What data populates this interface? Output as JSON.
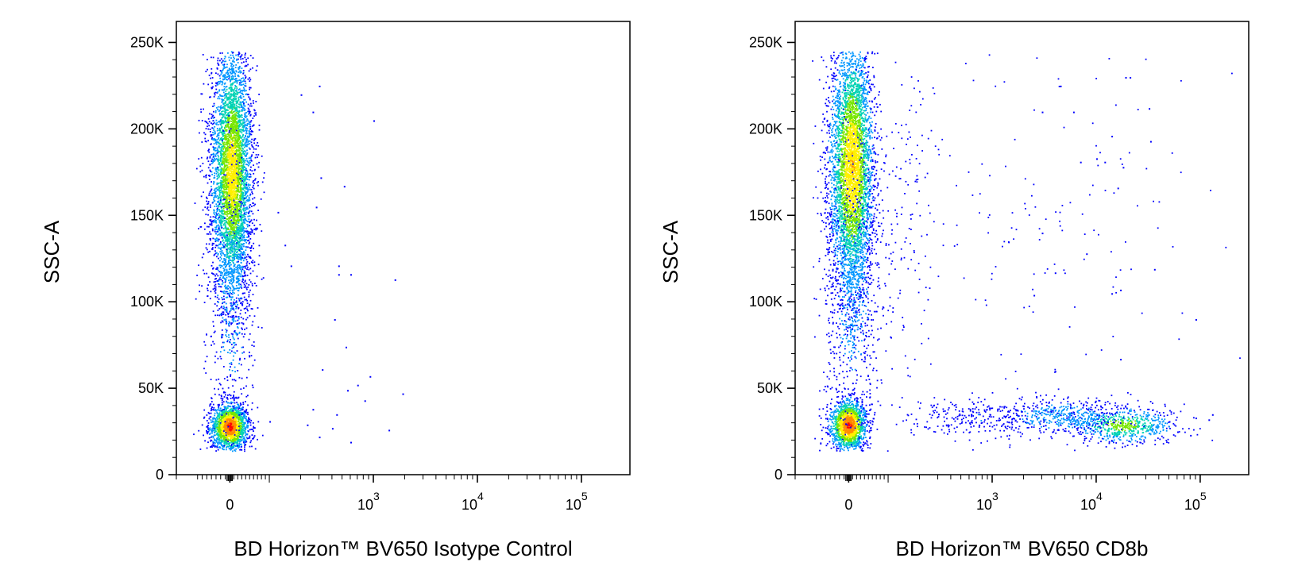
{
  "colors": {
    "density_scale": [
      "#0000ff",
      "#0096ff",
      "#00d2b4",
      "#78e600",
      "#fff000",
      "#ff8c00",
      "#ff0000"
    ],
    "axis": "#000000",
    "background": "#ffffff"
  },
  "chart_data": [
    {
      "type": "scatter",
      "subtype": "flow-cytometry-density-dot-plot",
      "title": "",
      "xlabel": "BD Horizon™ BV650 Isotype Control",
      "ylabel": "SSC-A",
      "x_scale": "biexponential",
      "xlim": [
        -120,
        150000
      ],
      "ylim": [
        0,
        262144
      ],
      "x_ticks": [
        {
          "value": 0,
          "base": "0",
          "exp": ""
        },
        {
          "value": 1000,
          "base": "10",
          "exp": "3"
        },
        {
          "value": 10000,
          "base": "10",
          "exp": "4"
        },
        {
          "value": 100000,
          "base": "10",
          "exp": "5"
        }
      ],
      "y_ticks": [
        {
          "value": 0,
          "label": "0"
        },
        {
          "value": 50000,
          "label": "50K"
        },
        {
          "value": 100000,
          "label": "100K"
        },
        {
          "value": 150000,
          "label": "150K"
        },
        {
          "value": 200000,
          "label": "200K"
        },
        {
          "value": 250000,
          "label": "250K"
        }
      ],
      "populations": [
        {
          "name": "",
          "x_center": 0,
          "x_spread": 22,
          "y_center": 28000,
          "y_spread": 7000,
          "count": 1700,
          "max_density": 1.0
        },
        {
          "name": "",
          "x_center": 5,
          "x_spread": 24,
          "y_center": 175000,
          "y_spread": 38000,
          "y_range": [
            70000,
            245000
          ],
          "count": 4600,
          "max_density": 0.72
        },
        {
          "name": "",
          "x_center": 5,
          "x_spread": 30,
          "y_center": 100000,
          "y_spread": 45000,
          "y_range": [
            15000,
            245000
          ],
          "count": 500,
          "max_density": 0.2
        }
      ],
      "sparse_events": [
        {
          "x": 200,
          "y": 220000
        },
        {
          "x": 300,
          "y": 225000
        },
        {
          "x": 260,
          "y": 210000
        },
        {
          "x": 1000,
          "y": 205000
        },
        {
          "x": 310,
          "y": 172000
        },
        {
          "x": 520,
          "y": 167000
        },
        {
          "x": 280,
          "y": 155000
        },
        {
          "x": 120,
          "y": 152000
        },
        {
          "x": 140,
          "y": 133000
        },
        {
          "x": 160,
          "y": 121000
        },
        {
          "x": 460,
          "y": 121000
        },
        {
          "x": 460,
          "y": 116000
        },
        {
          "x": 600,
          "y": 116000
        },
        {
          "x": 1600,
          "y": 113000
        },
        {
          "x": 420,
          "y": 90000
        },
        {
          "x": 540,
          "y": 74000
        },
        {
          "x": 320,
          "y": 61000
        },
        {
          "x": 920,
          "y": 57000
        },
        {
          "x": 700,
          "y": 52000
        },
        {
          "x": 1900,
          "y": 47000
        },
        {
          "x": 560,
          "y": 49000
        },
        {
          "x": 820,
          "y": 43000
        },
        {
          "x": 260,
          "y": 38000
        },
        {
          "x": 440,
          "y": 35000
        },
        {
          "x": 400,
          "y": 27000
        },
        {
          "x": 1400,
          "y": 26000
        },
        {
          "x": 300,
          "y": 22000
        },
        {
          "x": 600,
          "y": 19000
        },
        {
          "x": 100,
          "y": 31000
        },
        {
          "x": 230,
          "y": 29000
        }
      ]
    },
    {
      "type": "scatter",
      "subtype": "flow-cytometry-density-dot-plot",
      "title": "",
      "xlabel": "BD Horizon™ BV650 CD8b",
      "ylabel": "SSC-A",
      "x_scale": "biexponential",
      "xlim": [
        -120,
        150000
      ],
      "ylim": [
        0,
        262144
      ],
      "x_ticks": [
        {
          "value": 0,
          "base": "0",
          "exp": ""
        },
        {
          "value": 1000,
          "base": "10",
          "exp": "3"
        },
        {
          "value": 10000,
          "base": "10",
          "exp": "4"
        },
        {
          "value": 100000,
          "base": "10",
          "exp": "5"
        }
      ],
      "y_ticks": [
        {
          "value": 0,
          "label": "0"
        },
        {
          "value": 50000,
          "label": "50K"
        },
        {
          "value": 100000,
          "label": "100K"
        },
        {
          "value": 150000,
          "label": "150K"
        },
        {
          "value": 200000,
          "label": "200K"
        },
        {
          "value": 250000,
          "label": "250K"
        }
      ],
      "populations": [
        {
          "name": "",
          "x_center": 0,
          "x_spread": 22,
          "y_center": 29000,
          "y_spread": 7500,
          "count": 1500,
          "max_density": 1.0
        },
        {
          "name": "",
          "x_center": 8,
          "x_spread": 26,
          "y_center": 178000,
          "y_spread": 38000,
          "y_range": [
            70000,
            245000
          ],
          "count": 4400,
          "max_density": 0.8
        },
        {
          "name": "",
          "x_center": 10,
          "x_spread": 34,
          "y_center": 105000,
          "y_spread": 45000,
          "y_range": [
            15000,
            245000
          ],
          "count": 700,
          "max_density": 0.2
        },
        {
          "name": "",
          "x_center": 18000,
          "x_spread_log": 0.25,
          "y_center": 29000,
          "y_spread": 5500,
          "count": 650,
          "max_density": 0.55
        },
        {
          "name": "",
          "x_center": 4500,
          "x_spread_log": 0.3,
          "y_center": 34000,
          "y_spread": 5500,
          "count": 420,
          "max_density": 0.28
        },
        {
          "name": "",
          "x_center": 700,
          "x_spread_log": 0.35,
          "y_center": 33000,
          "y_spread": 6500,
          "count": 260,
          "max_density": 0.12
        },
        {
          "name": "",
          "x_center": 2500,
          "x_spread_log": 0.9,
          "y_center": 150000,
          "y_spread": 55000,
          "y_range": [
            40000,
            245000
          ],
          "count": 160,
          "max_density": 0.06
        },
        {
          "name": "",
          "x_center": 130,
          "x_spread": 70,
          "y_center": 150000,
          "y_spread": 50000,
          "y_range": [
            40000,
            245000
          ],
          "count": 170,
          "max_density": 0.08
        }
      ],
      "sparse_events": [
        {
          "x": 4500,
          "y": 225000
        },
        {
          "x": 19000,
          "y": 230000
        },
        {
          "x": 21000,
          "y": 230000
        },
        {
          "x": 32000,
          "y": 212000
        },
        {
          "x": 3000,
          "y": 210000
        },
        {
          "x": 6000,
          "y": 210000
        },
        {
          "x": 14000,
          "y": 196000
        },
        {
          "x": 33000,
          "y": 193000
        },
        {
          "x": 7000,
          "y": 181000
        },
        {
          "x": 10000,
          "y": 183000
        },
        {
          "x": 12000,
          "y": 181000
        },
        {
          "x": 18000,
          "y": 178000
        },
        {
          "x": 16000,
          "y": 166000
        },
        {
          "x": 3000,
          "y": 140000
        },
        {
          "x": 8000,
          "y": 128000
        },
        {
          "x": 4000,
          "y": 117000
        },
        {
          "x": 36000,
          "y": 119000
        },
        {
          "x": 14000,
          "y": 105000
        },
        {
          "x": 2500,
          "y": 104000
        },
        {
          "x": 17000,
          "y": 107000
        },
        {
          "x": 90000,
          "y": 90000
        },
        {
          "x": 17000,
          "y": 67000
        },
        {
          "x": 4000,
          "y": 60000
        },
        {
          "x": 120000,
          "y": 32000
        },
        {
          "x": 130000,
          "y": 35000
        },
        {
          "x": 90000,
          "y": 33000
        },
        {
          "x": 60000,
          "y": 25000
        },
        {
          "x": 80000,
          "y": 23000
        },
        {
          "x": 50000,
          "y": 31000
        }
      ]
    }
  ]
}
